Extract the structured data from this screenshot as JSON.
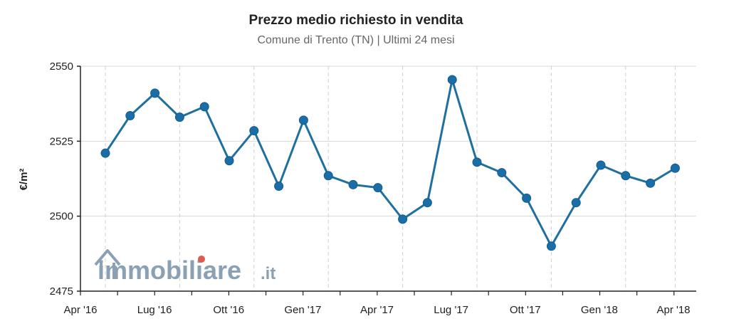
{
  "chart_data": {
    "type": "line",
    "title": "Prezzo medio richiesto in vendita",
    "subtitle": "Comune di Trento (TN) | Ultimi 24 mesi",
    "xlabel": "",
    "ylabel": "€/m²",
    "ylim": [
      2475,
      2550
    ],
    "yticks": [
      2475,
      2500,
      2525,
      2550
    ],
    "xtick_labels": [
      "Apr '16",
      "Lug '16",
      "Ott '16",
      "Gen '17",
      "Apr '17",
      "Lug '17",
      "Ott '17",
      "Gen '18",
      "Apr '18"
    ],
    "grid": true,
    "series": [
      {
        "color": "#1f6f9f",
        "values": [
          2521,
          2533.5,
          2541,
          2533,
          2536.5,
          2518.5,
          2528.5,
          2510,
          2532,
          2513.5,
          2510.5,
          2509.5,
          2499,
          2504.5,
          2545.5,
          2518,
          2514.5,
          2506,
          2490,
          2504.5,
          2517,
          2513.5,
          2511,
          2516
        ]
      }
    ]
  },
  "watermark": {
    "text_main": "immobiliare",
    "text_suffix": ".it",
    "color": "#8aa0b4",
    "accent_color": "#e05a4b"
  }
}
